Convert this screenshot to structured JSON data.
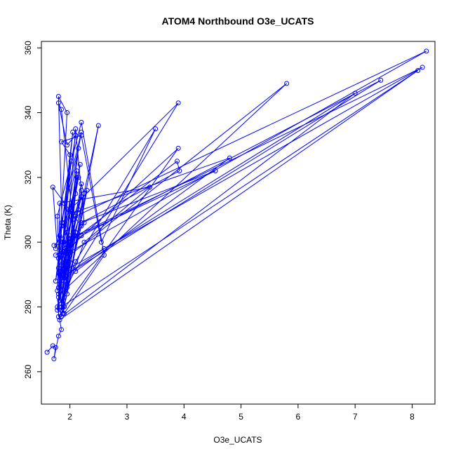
{
  "chart_data": {
    "type": "line",
    "title": "ATOM4 Northbound O3e_UCATS",
    "xlabel": "O3e_UCATS",
    "ylabel": "Theta (K)",
    "xlim": [
      1.5,
      8.4
    ],
    "ylim": [
      250,
      362
    ],
    "xticks": [
      2,
      3,
      4,
      5,
      6,
      7,
      8
    ],
    "yticks": [
      260,
      280,
      300,
      320,
      340,
      360
    ],
    "marker": "open-circle",
    "grid": false,
    "colors": {
      "series": "#0000ff",
      "axis": "#000000"
    },
    "series": [
      {
        "x": [
          1.6,
          1.7,
          1.75,
          1.72,
          1.8,
          1.85,
          1.78,
          1.9,
          1.82,
          1.86,
          1.8,
          1.95,
          1.78,
          1.82,
          1.92,
          1.75,
          2.0,
          2.05,
          1.85,
          1.8,
          1.95,
          2.1,
          1.85,
          1.75,
          2.15,
          1.9,
          2.2,
          2.25,
          1.95,
          2.02,
          2.12,
          1.88,
          2.3,
          2.0,
          1.82,
          2.1,
          2.5,
          1.9,
          1.82,
          1.78,
          2.2,
          2.6,
          1.9,
          1.8,
          2.0,
          1.85,
          2.2,
          2.55,
          3.5,
          2.1,
          1.85,
          1.7,
          2.2,
          1.95,
          3.9,
          2.0,
          1.8,
          2.1,
          1.9,
          2.25,
          3.4,
          1.82,
          1.8,
          3.9,
          1.85,
          2.0,
          3.88,
          3.92,
          2.2,
          4.55,
          1.9,
          2.1,
          4.8,
          2.05,
          1.95,
          5.8,
          2.0,
          1.85,
          7.0,
          2.6,
          1.85,
          7.45,
          2.2,
          1.9,
          8.25,
          2.1,
          2.0,
          8.18,
          2.1,
          1.85,
          8.1,
          1.82,
          1.9,
          2.2,
          2.15,
          1.8,
          2.12,
          1.92,
          1.78,
          2.02,
          1.88,
          1.75,
          2.05,
          1.9,
          2.1,
          1.82,
          2.18,
          1.85,
          2.0,
          1.72,
          1.95,
          2.2,
          1.8,
          2.15,
          1.9,
          2.0,
          1.85,
          2.1,
          2.25,
          1.9,
          2.0,
          1.8,
          2.2,
          1.9,
          2.1,
          1.85,
          1.95,
          2.0
        ],
        "y": [
          266,
          268,
          267.5,
          264,
          271,
          273,
          280,
          292,
          296,
          306,
          345,
          340,
          285,
          302,
          298,
          296,
          299,
          307,
          341,
          343,
          330,
          333,
          305,
          298,
          329,
          289,
          318,
          315,
          284,
          299,
          320,
          278,
          316,
          298,
          282,
          303,
          336,
          280,
          290,
          308,
          337,
          296,
          278,
          284,
          327,
          331,
          333,
          300,
          335,
          294,
          281,
          317,
          305,
          287,
          343,
          310,
          295,
          302,
          283,
          300,
          317,
          312,
          277,
          329,
          296,
          300,
          325,
          322,
          306,
          322,
          300,
          291,
          326,
          309,
          286,
          349,
          296,
          277,
          346,
          298,
          289,
          350,
          302,
          296,
          359,
          308,
          292,
          354,
          302,
          280,
          353,
          276,
          288,
          316,
          310,
          286,
          322,
          294,
          279,
          325,
          300,
          288,
          334,
          306,
          315,
          287,
          324,
          296,
          300,
          299,
          303,
          314,
          283,
          320,
          305,
          299,
          279,
          335,
          306,
          296,
          301,
          292,
          334,
          312,
          303,
          291,
          297,
          302
        ]
      }
    ]
  }
}
